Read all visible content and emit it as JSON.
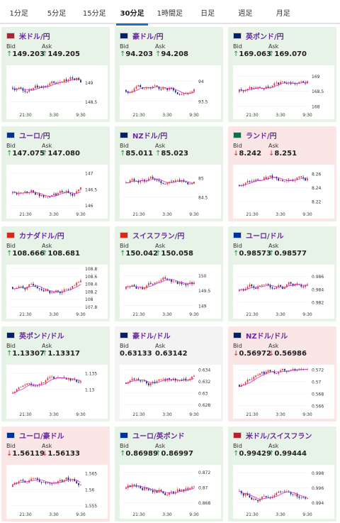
{
  "tabs": [
    {
      "label": "1分足",
      "active": false
    },
    {
      "label": "5分足",
      "active": false
    },
    {
      "label": "15分足",
      "active": false
    },
    {
      "label": "30分足",
      "active": true
    },
    {
      "label": "1時間足",
      "active": false
    },
    {
      "label": "日足",
      "active": false
    },
    {
      "label": "週足",
      "active": false
    },
    {
      "label": "月足",
      "active": false
    }
  ],
  "bid_label": "Bid",
  "ask_label": "Ask",
  "time_ticks": [
    "21:30",
    "3:30",
    "9:30"
  ],
  "colors": {
    "up_bg": "#e6f3e6",
    "down_bg": "#fbe6e6",
    "up_candle": "#e53935",
    "down_candle": "#1a237e",
    "ma": "#cc33cc"
  },
  "cards": [
    {
      "pair": "米ドル/円",
      "flag": "us-flag-icon",
      "trend": "up",
      "bid": "149.203",
      "ask": "149.205",
      "yticks": [
        "149",
        "148.5"
      ],
      "ylim": [
        148.3,
        149.4
      ],
      "seed": 1
    },
    {
      "pair": "豪ドル/円",
      "flag": "au-flag-icon",
      "trend": "up",
      "bid": "94.203",
      "ask": "94.208",
      "yticks": [
        "94",
        "93.5"
      ],
      "ylim": [
        93.3,
        94.35
      ],
      "seed": 2
    },
    {
      "pair": "英ポンド/円",
      "flag": "gb-flag-icon",
      "trend": "up",
      "bid": "169.063",
      "ask": "169.070",
      "yticks": [
        "169",
        "168.5",
        "168"
      ],
      "ylim": [
        167.9,
        169.3
      ],
      "seed": 3
    },
    {
      "pair": "ユーロ/円",
      "flag": "eu-flag-icon",
      "trend": "up",
      "bid": "147.075",
      "ask": "147.080",
      "yticks": [
        "147",
        "146.5",
        "146"
      ],
      "ylim": [
        145.9,
        147.2
      ],
      "seed": 4
    },
    {
      "pair": "NZドル/円",
      "flag": "nz-flag-icon",
      "trend": "up",
      "bid": "85.011",
      "ask": "85.023",
      "yticks": [
        "85",
        "84.5"
      ],
      "ylim": [
        84.2,
        85.3
      ],
      "seed": 5
    },
    {
      "pair": "ランド/円",
      "flag": "za-flag-icon",
      "trend": "down",
      "bid": "8.242",
      "ask": "8.251",
      "yticks": [
        "8.26",
        "8.24",
        "8.22"
      ],
      "ylim": [
        8.21,
        8.27
      ],
      "seed": 6
    },
    {
      "pair": "カナダドル/円",
      "flag": "ca-flag-icon",
      "trend": "up",
      "bid": "108.666",
      "ask": "108.681",
      "yticks": [
        "108.8",
        "108.6",
        "108.4",
        "108.2",
        "108",
        "107.8"
      ],
      "ylim": [
        107.75,
        108.85
      ],
      "seed": 7
    },
    {
      "pair": "スイスフラン/円",
      "flag": "ch-flag-icon",
      "trend": "up",
      "bid": "150.042",
      "ask": "150.058",
      "yticks": [
        "150",
        "149.5",
        "149"
      ],
      "ylim": [
        148.9,
        150.3
      ],
      "seed": 8
    },
    {
      "pair": "ユーロ/ドル",
      "flag": "eu-us-flag-icon",
      "trend": "up",
      "bid": "0.98573",
      "ask": "0.98577",
      "yticks": [
        "0.986",
        "0.984",
        "0.982"
      ],
      "ylim": [
        0.981,
        0.9875
      ],
      "seed": 9
    },
    {
      "pair": "英ポンド/ドル",
      "flag": "gb-us-flag-icon",
      "trend": "up",
      "bid": "1.13307",
      "ask": "1.13317",
      "yticks": [
        "1.135",
        "1.13"
      ],
      "ylim": [
        1.124,
        1.137
      ],
      "seed": 10
    },
    {
      "pair": "豪ドル/ドル",
      "flag": "au-us-flag-icon",
      "trend": "flat",
      "bid": "0.63133",
      "ask": "0.63142",
      "yticks": [
        "0.634",
        "0.632",
        "0.63",
        "0.628"
      ],
      "ylim": [
        0.6273,
        0.6345
      ],
      "seed": 11
    },
    {
      "pair": "NZドル/ドル",
      "flag": "nz-us-flag-icon",
      "trend": "down",
      "bid": "0.56972",
      "ask": "0.56986",
      "yticks": [
        "0.572",
        "0.57",
        "0.568",
        "0.566"
      ],
      "ylim": [
        0.5655,
        0.5725
      ],
      "seed": 12
    },
    {
      "pair": "ユーロ/豪ドル",
      "flag": "eu-au-flag-icon",
      "trend": "down",
      "bid": "1.56119",
      "ask": "1.56133",
      "yticks": [
        "1.565",
        "1.56",
        "1.555"
      ],
      "ylim": [
        1.554,
        1.567
      ],
      "seed": 13
    },
    {
      "pair": "ユーロ/英ポンド",
      "flag": "eu-gb-flag-icon",
      "trend": "up",
      "bid": "0.86989",
      "ask": "0.86997",
      "yticks": [
        "0.872",
        "0.87",
        "0.868"
      ],
      "ylim": [
        0.8672,
        0.8727
      ],
      "seed": 14
    },
    {
      "pair": "米ドル/スイスフラン",
      "flag": "us-ch-flag-icon",
      "trend": "up",
      "bid": "0.99429",
      "ask": "0.99444",
      "yticks": [
        "0.998",
        "0.996",
        "0.994"
      ],
      "ylim": [
        0.9932,
        0.9988
      ],
      "seed": 15
    }
  ]
}
